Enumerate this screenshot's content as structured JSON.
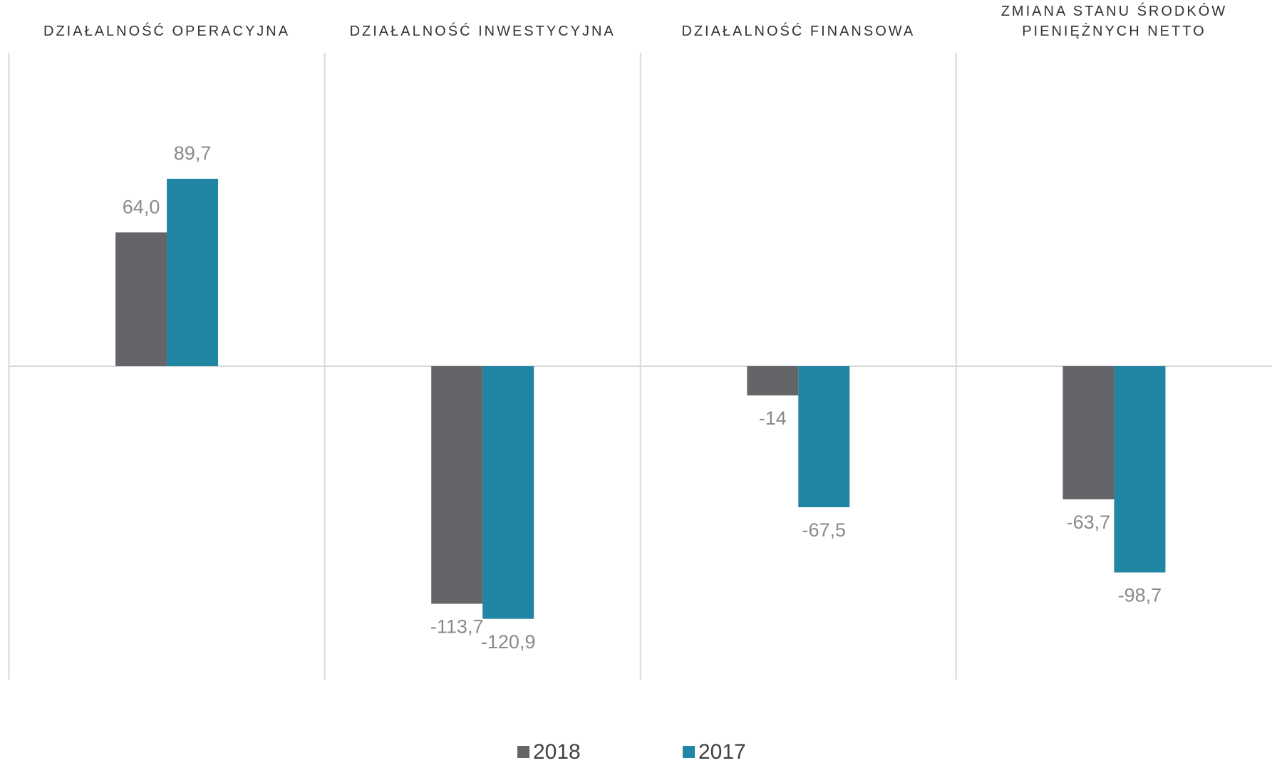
{
  "chart_data": {
    "type": "bar",
    "categories": [
      "DZIAŁALNOŚĆ OPERACYJNA",
      "DZIAŁALNOŚĆ INWESTYCYJNA",
      "DZIAŁALNOŚĆ FINANSOWA",
      "ZMIANA STANU ŚRODKÓW PIENIĘŻNYCH NETTO"
    ],
    "series": [
      {
        "name": "2018",
        "color": "#636569",
        "values": [
          64.0,
          -113.7,
          -14,
          -63.7
        ],
        "value_labels": [
          "64,0",
          "-113,7",
          "-14",
          "-63,7"
        ]
      },
      {
        "name": "2017",
        "color": "#2185a4",
        "values": [
          89.7,
          -120.9,
          -67.5,
          -98.7
        ],
        "value_labels": [
          "89,7",
          "-120,9",
          "-67,5",
          "-98,7"
        ]
      }
    ],
    "ylim": [
      -150,
      150
    ],
    "legend": "bottom"
  }
}
